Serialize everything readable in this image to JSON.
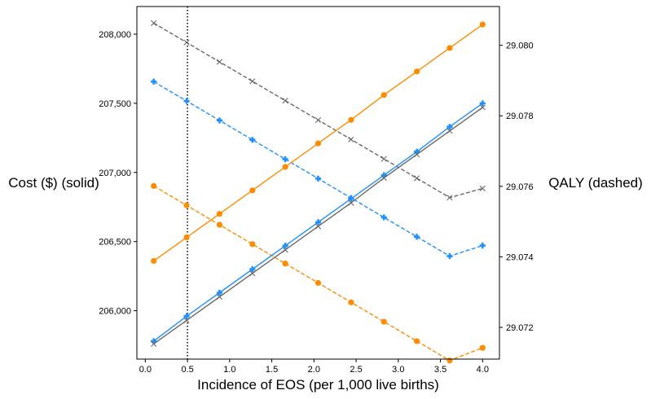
{
  "chart_data": {
    "type": "line",
    "xlabel": "Incidence of EOS (per 1,000 live births)",
    "ylabel_left": "Cost ($) (solid)",
    "ylabel_right": "QALY (dashed)",
    "x": [
      0.1,
      0.49,
      0.88,
      1.27,
      1.66,
      2.05,
      2.44,
      2.83,
      3.22,
      3.61,
      4.0
    ],
    "xlim": [
      -0.1,
      4.2
    ],
    "xticks": [
      0.0,
      0.5,
      1.0,
      1.5,
      2.0,
      2.5,
      3.0,
      3.5,
      4.0
    ],
    "xtick_labels": [
      "0.0",
      "0.5",
      "1.0",
      "1.5",
      "2.0",
      "2.5",
      "3.0",
      "3.5",
      "4.0"
    ],
    "ylim_left": [
      205650,
      208200
    ],
    "yticks_left": [
      206000,
      206500,
      207000,
      207500,
      208000
    ],
    "ytick_labels_left": [
      "206,000",
      "206,500",
      "207,000",
      "207,500",
      "208,000"
    ],
    "ylim_right": [
      29.0711,
      29.0811
    ],
    "yticks_right": [
      29.072,
      29.074,
      29.076,
      29.078,
      29.08
    ],
    "ytick_labels_right": [
      "29.072",
      "29.074",
      "29.076",
      "29.078",
      "29.080"
    ],
    "reference_line": {
      "x": 0.5,
      "style": "dotted",
      "color": "#000000"
    },
    "grid": false,
    "cost_series": [
      {
        "color": "#ff8c00",
        "marker": "circle",
        "values": [
          206360,
          206530,
          206700,
          206870,
          207040,
          207210,
          207380,
          207560,
          207730,
          207900,
          208070
        ]
      },
      {
        "color": "#1e90ff",
        "marker": "plus",
        "values": [
          205780,
          205960,
          206130,
          206300,
          206470,
          206640,
          206810,
          206980,
          207150,
          207330,
          207500
        ]
      },
      {
        "color": "#696969",
        "marker": "x",
        "values": [
          205760,
          205930,
          206100,
          206270,
          206440,
          206610,
          206780,
          206960,
          207130,
          207300,
          207470
        ]
      }
    ],
    "qaly_series": [
      {
        "color": "#ff8c00",
        "marker": "circle",
        "values": [
          29.07601,
          29.07546,
          29.07491,
          29.07436,
          29.07381,
          29.07326,
          29.07271,
          29.07216,
          29.07161,
          29.07106,
          29.07142
        ]
      },
      {
        "color": "#1e90ff",
        "marker": "plus",
        "values": [
          29.07897,
          29.07842,
          29.07787,
          29.07732,
          29.07677,
          29.07622,
          29.07567,
          29.07512,
          29.07457,
          29.07402,
          29.07432
        ]
      },
      {
        "color": "#696969",
        "marker": "x",
        "values": [
          29.08063,
          29.08008,
          29.07953,
          29.07898,
          29.07843,
          29.07788,
          29.07733,
          29.07678,
          29.07623,
          29.07568,
          29.07594
        ]
      }
    ]
  }
}
